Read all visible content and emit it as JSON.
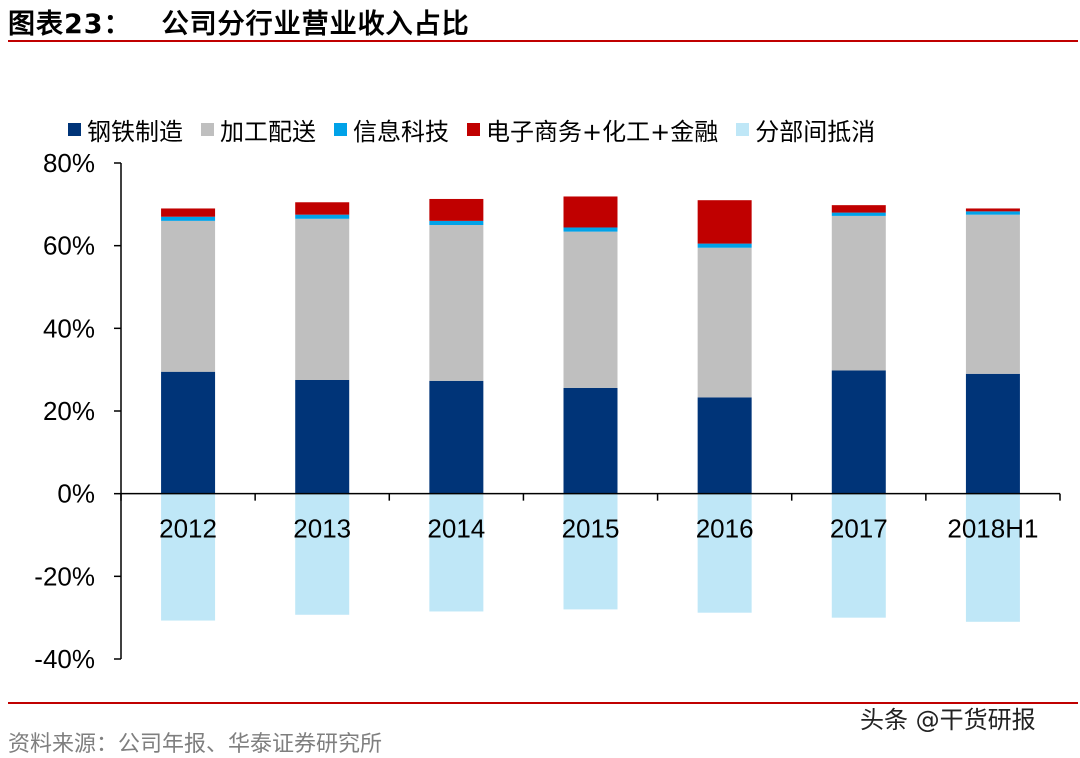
{
  "figure": {
    "label": "图表23：",
    "title": "公司分行业营业收入占比"
  },
  "source": "资料来源：公司年报、华泰证券研究所",
  "watermark": "头条 @干货研报",
  "chart_data": {
    "type": "bar",
    "stacked": true,
    "categories": [
      "2012",
      "2013",
      "2014",
      "2015",
      "2016",
      "2017",
      "2018H1"
    ],
    "ylim": [
      -40,
      80
    ],
    "yticks": [
      -40,
      -20,
      0,
      20,
      40,
      60,
      80
    ],
    "ytick_labels": [
      "-40%",
      "-20%",
      "0%",
      "20%",
      "40%",
      "60%",
      "80%"
    ],
    "legend_position": "top",
    "series": [
      {
        "name": "钢铁制造",
        "color": "#003478",
        "values": [
          29.5,
          27.5,
          27.3,
          25.6,
          23.3,
          29.8,
          29.0
        ]
      },
      {
        "name": "加工配送",
        "color": "#bfbfbf",
        "values": [
          36.5,
          39.0,
          37.7,
          37.8,
          36.2,
          37.4,
          38.5
        ]
      },
      {
        "name": "信息科技",
        "color": "#00a2e8",
        "values": [
          1.0,
          1.0,
          1.0,
          1.0,
          1.0,
          0.8,
          0.8
        ]
      },
      {
        "name": "电子商务+化工+金融",
        "color": "#c00000",
        "values": [
          2.0,
          3.0,
          5.3,
          7.5,
          10.5,
          1.8,
          0.7
        ]
      },
      {
        "name": "分部间抵消",
        "color": "#bfe7f7",
        "values": [
          -30.7,
          -29.3,
          -28.5,
          -28.0,
          -28.8,
          -30.0,
          -31.0
        ]
      }
    ]
  }
}
